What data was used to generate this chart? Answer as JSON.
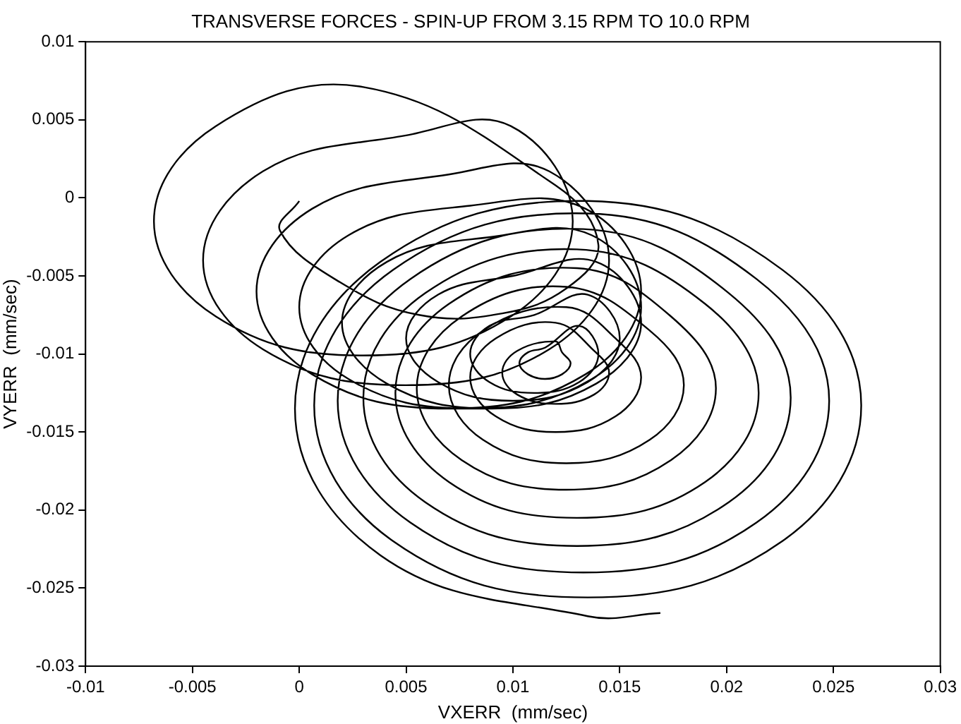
{
  "chart_data": {
    "type": "line",
    "title": "TRANSVERSE FORCES - SPIN-UP FROM 3.15 RPM TO 10.0 RPM",
    "xlabel": "VXERR  (mm/sec)",
    "ylabel": "VYERR  (mm/sec)",
    "xlim": [
      -0.01,
      0.03
    ],
    "xticks": [
      -0.01,
      -0.005,
      0,
      0.005,
      0.01,
      0.015,
      0.02,
      0.025,
      0.03
    ],
    "ylim": [
      -0.03,
      0.01
    ],
    "yticks": [
      -0.03,
      -0.025,
      -0.02,
      -0.015,
      -0.01,
      -0.005,
      0,
      0.005,
      0.01
    ],
    "grid": false,
    "legend": false,
    "marker": "none",
    "line_style": "solid",
    "color": "#000000",
    "x": [
      0,
      -0.0009,
      0.0019,
      0.0056,
      0.0095,
      0.0125,
      0.014,
      0.012,
      0.003,
      -0.0039,
      -0.0068,
      -0.0039,
      0.003,
      0.0099,
      0.0128,
      0.0099,
      0.005,
      -0.0017,
      -0.0045,
      -0.0017,
      0.005,
      0.0117,
      0.0145,
      0.0117,
      0.007,
      0.0006,
      -0.002,
      0.0006,
      0.007,
      0.0134,
      0.016,
      0.0134,
      0.008,
      0.0023,
      0,
      0.0023,
      0.008,
      0.0137,
      0.016,
      0.0137,
      0.009,
      0.0041,
      0.002,
      0.0041,
      0.009,
      0.0139,
      0.016,
      0.0139,
      0.01,
      0.0065,
      0.005,
      0.0065,
      0.01,
      0.0135,
      0.015,
      0.0135,
      0.011,
      0.0089,
      0.008,
      0.0089,
      0.011,
      0.0131,
      0.014,
      0.0131,
      0.0115,
      0.0107,
      0.0103,
      0.0107,
      0.0115,
      0.0123,
      0.0127,
      0.0123,
      0.012,
      0.0102,
      0.0095,
      0.0102,
      0.012,
      0.0138,
      0.0145,
      0.0138,
      0.012,
      0.0092,
      0.008,
      0.0092,
      0.012,
      0.0148,
      0.016,
      0.0148,
      0.0125,
      0.0086,
      0.007,
      0.0086,
      0.0125,
      0.0164,
      0.018,
      0.0164,
      0.0125,
      0.0076,
      0.0055,
      0.0076,
      0.0125,
      0.0174,
      0.0195,
      0.0174,
      0.013,
      0.007,
      0.0045,
      0.007,
      0.013,
      0.019,
      0.0215,
      0.019,
      0.013,
      0.0059,
      0.003,
      0.0059,
      0.013,
      0.0201,
      0.023,
      0.0201,
      0.0133,
      0.0052,
      0.0018,
      0.0052,
      0.0133,
      0.0214,
      0.0248,
      0.0214,
      0.0135,
      0.0044,
      0.0007,
      0.0044,
      0.0135,
      0.0226,
      0.0263,
      0.0226,
      0.0135,
      0.0038,
      -0.0002,
      0.0038,
      0.0135,
      0.0169
    ],
    "values": [
      -0.0002,
      -0.0021,
      -0.0054,
      -0.0075,
      -0.0074,
      -0.0058,
      -0.003,
      0.0008,
      0.0071,
      0.0046,
      -0.0015,
      -0.0076,
      -0.0101,
      -0.0076,
      -0.0015,
      0.0046,
      0.004,
      0.0017,
      -0.004,
      -0.0097,
      -0.012,
      -0.0097,
      -0.004,
      0.0017,
      0.0015,
      -0.0007,
      -0.006,
      -0.0113,
      -0.0135,
      -0.0113,
      -0.006,
      -0.0007,
      -0.0005,
      -0.0024,
      -0.007,
      -0.0116,
      -0.0135,
      -0.0116,
      -0.007,
      -0.0024,
      -0.0025,
      -0.0041,
      -0.008,
      -0.0119,
      -0.0135,
      -0.0119,
      -0.008,
      -0.0041,
      -0.005,
      -0.0062,
      -0.009,
      -0.0118,
      -0.013,
      -0.0118,
      -0.009,
      -0.0062,
      -0.0075,
      -0.0082,
      -0.01,
      -0.0118,
      -0.0125,
      -0.0118,
      -0.01,
      -0.0082,
      -0.0096,
      -0.0099,
      -0.0106,
      -0.0113,
      -0.0116,
      -0.0113,
      -0.0106,
      -0.0099,
      -0.0092,
      -0.0098,
      -0.0112,
      -0.0126,
      -0.0132,
      -0.0126,
      -0.0112,
      -0.0098,
      -0.008,
      -0.009,
      -0.0115,
      -0.014,
      -0.015,
      -0.014,
      -0.0115,
      -0.009,
      -0.007,
      -0.0085,
      -0.012,
      -0.0155,
      -0.017,
      -0.0155,
      -0.012,
      -0.0085,
      -0.0057,
      -0.0076,
      -0.0122,
      -0.0168,
      -0.0187,
      -0.0168,
      -0.0122,
      -0.0076,
      -0.0045,
      -0.0068,
      -0.0125,
      -0.0182,
      -0.0205,
      -0.0182,
      -0.0125,
      -0.0068,
      -0.0033,
      -0.0061,
      -0.0128,
      -0.0195,
      -0.0223,
      -0.0195,
      -0.0128,
      -0.0061,
      -0.002,
      -0.0052,
      -0.013,
      -0.0208,
      -0.024,
      -0.0208,
      -0.013,
      -0.0052,
      -0.001,
      -0.0046,
      -0.0133,
      -0.022,
      -0.0256,
      -0.022,
      -0.0133,
      -0.0046,
      -0.0002,
      -0.0041,
      -0.0135,
      -0.0229,
      -0.0268,
      -0.0266
    ]
  }
}
